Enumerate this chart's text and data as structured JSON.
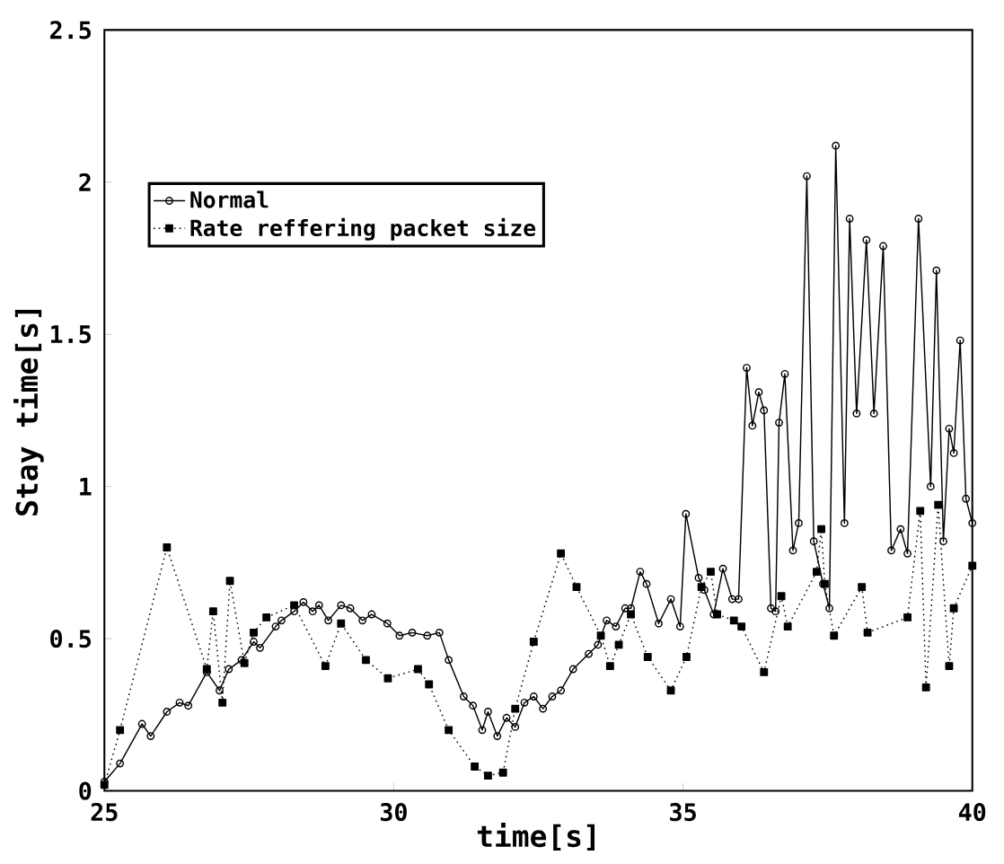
{
  "chart_data": {
    "type": "line",
    "xlabel": "time[s]",
    "ylabel": "Stay time[s]",
    "xlim": [
      25,
      40
    ],
    "ylim": [
      0,
      2.5
    ],
    "xticks": [
      25,
      30,
      35,
      40
    ],
    "yticks": [
      0,
      0.5,
      1,
      1.5,
      2,
      2.5
    ],
    "grid": false,
    "legend": "top left",
    "series": [
      {
        "name": "Normal",
        "color": "#000000",
        "marker": "circle",
        "line_style": "solid",
        "x": [
          25.0,
          25.27,
          25.65,
          25.8,
          26.08,
          26.3,
          26.45,
          26.77,
          26.99,
          27.15,
          27.37,
          27.58,
          27.69,
          27.96,
          28.06,
          28.28,
          28.44,
          28.6,
          28.71,
          28.87,
          29.09,
          29.25,
          29.46,
          29.62,
          29.89,
          30.1,
          30.32,
          30.58,
          30.79,
          30.95,
          31.21,
          31.37,
          31.53,
          31.63,
          31.79,
          31.95,
          32.1,
          32.26,
          32.42,
          32.58,
          32.74,
          32.89,
          33.1,
          33.37,
          33.53,
          33.68,
          33.84,
          34.0,
          34.1,
          34.26,
          34.37,
          34.58,
          34.79,
          34.95,
          35.05,
          35.27,
          35.37,
          35.53,
          35.69,
          35.85,
          35.96,
          36.1,
          36.2,
          36.31,
          36.4,
          36.52,
          36.6,
          36.66,
          36.76,
          36.9,
          37.0,
          37.14,
          37.26,
          37.42,
          37.53,
          37.64,
          37.79,
          37.88,
          38.0,
          38.17,
          38.3,
          38.46,
          38.6,
          38.76,
          38.88,
          39.07,
          39.28,
          39.38,
          39.5,
          39.6,
          39.68,
          39.79,
          39.89,
          40.0
        ],
        "values": [
          0.03,
          0.09,
          0.22,
          0.18,
          0.26,
          0.29,
          0.28,
          0.39,
          0.33,
          0.4,
          0.43,
          0.49,
          0.47,
          0.54,
          0.56,
          0.59,
          0.62,
          0.59,
          0.61,
          0.56,
          0.61,
          0.6,
          0.56,
          0.58,
          0.55,
          0.51,
          0.52,
          0.51,
          0.52,
          0.43,
          0.31,
          0.28,
          0.2,
          0.26,
          0.18,
          0.24,
          0.21,
          0.29,
          0.31,
          0.27,
          0.31,
          0.33,
          0.4,
          0.45,
          0.48,
          0.56,
          0.54,
          0.6,
          0.6,
          0.72,
          0.68,
          0.55,
          0.63,
          0.54,
          0.91,
          0.7,
          0.66,
          0.58,
          0.73,
          0.63,
          0.63,
          1.39,
          1.2,
          1.31,
          1.25,
          0.6,
          0.59,
          1.21,
          1.37,
          0.79,
          0.88,
          2.02,
          0.82,
          0.68,
          0.6,
          2.12,
          0.88,
          1.88,
          1.24,
          1.81,
          1.24,
          1.79,
          0.79,
          0.86,
          0.78,
          1.88,
          1.0,
          1.71,
          0.82,
          1.19,
          1.11,
          1.48,
          0.96,
          0.88
        ]
      },
      {
        "name": "Rate reffering packet size",
        "color": "#000000",
        "marker": "square",
        "line_style": "dotted",
        "x": [
          25.0,
          25.27,
          26.08,
          26.77,
          26.88,
          27.04,
          27.17,
          27.42,
          27.58,
          27.8,
          28.28,
          28.82,
          29.09,
          29.52,
          29.9,
          30.42,
          30.61,
          30.95,
          31.4,
          31.63,
          31.89,
          32.1,
          32.42,
          32.89,
          33.16,
          33.58,
          33.74,
          33.89,
          34.1,
          34.39,
          34.79,
          35.06,
          35.32,
          35.48,
          35.59,
          35.88,
          36.01,
          36.4,
          36.7,
          36.81,
          37.31,
          37.39,
          37.45,
          37.61,
          38.09,
          38.19,
          38.88,
          39.1,
          39.2,
          39.41,
          39.6,
          39.68,
          40.0
        ],
        "values": [
          0.02,
          0.2,
          0.8,
          0.4,
          0.59,
          0.29,
          0.69,
          0.42,
          0.52,
          0.57,
          0.61,
          0.41,
          0.55,
          0.43,
          0.37,
          0.4,
          0.35,
          0.2,
          0.08,
          0.05,
          0.06,
          0.27,
          0.49,
          0.78,
          0.67,
          0.51,
          0.41,
          0.48,
          0.58,
          0.44,
          0.33,
          0.44,
          0.67,
          0.72,
          0.58,
          0.56,
          0.54,
          0.39,
          0.64,
          0.54,
          0.72,
          0.86,
          0.68,
          0.51,
          0.67,
          0.52,
          0.57,
          0.92,
          0.34,
          0.94,
          0.41,
          0.6,
          0.74
        ]
      }
    ]
  }
}
